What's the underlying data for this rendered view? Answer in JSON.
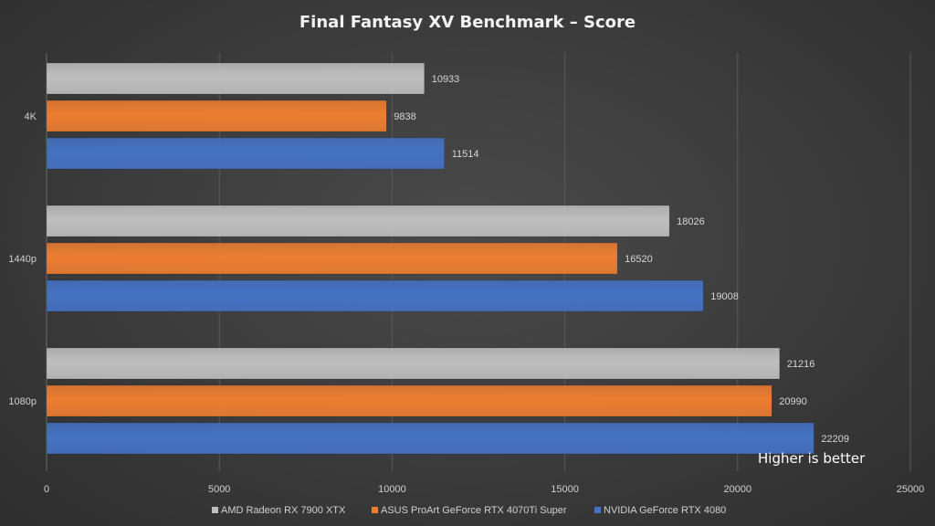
{
  "chart_data": {
    "type": "bar",
    "orientation": "horizontal",
    "title": "Final Fantasy XV Benchmark – Score",
    "categories": [
      "4K",
      "1440p",
      "1080p"
    ],
    "series": [
      {
        "name": "AMD Radeon RX 7900 XTX",
        "color": "#bfbfbf",
        "values": [
          10933,
          18026,
          21216
        ]
      },
      {
        "name": "ASUS ProArt GeForce RTX 4070Ti Super",
        "color": "#ed7d31",
        "values": [
          9838,
          16520,
          20990
        ]
      },
      {
        "name": "NVIDIA GeForce RTX 4080",
        "color": "#4472c4",
        "values": [
          11514,
          19008,
          22209
        ]
      }
    ],
    "xlim": [
      0,
      25000
    ],
    "xticks": [
      0,
      5000,
      10000,
      15000,
      20000,
      25000
    ],
    "grid": "vertical",
    "legend": "bottom",
    "annotation": "Higher is better"
  }
}
